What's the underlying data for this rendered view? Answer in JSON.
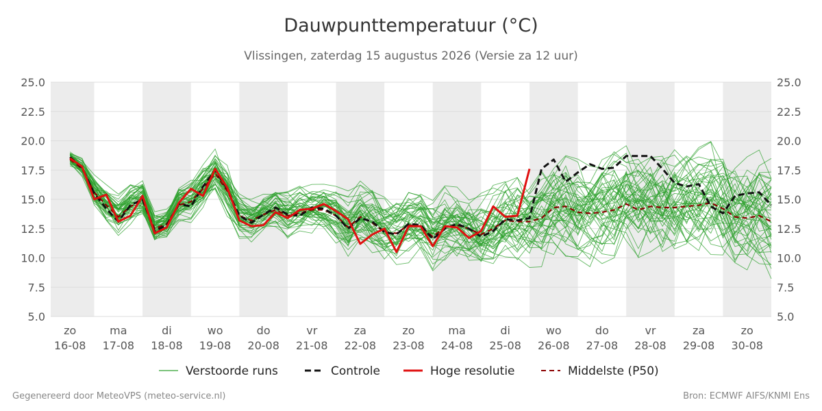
{
  "header": {
    "title": "Dauwpunttemperatuur (°C)",
    "subtitle": "Vlissingen, zaterdag 15 augustus 2026 (Versie za 12 uur)"
  },
  "footer": {
    "left": "Gegenereerd door MeteoVPS (meteo-service.nl)",
    "right": "Bron: ECMWF AIFS/KNMI Ens"
  },
  "colors": {
    "ensemble": "#2ca02c",
    "control": "#111111",
    "high_res": "#e01010",
    "median": "#8b0000",
    "weekend_band": "#ececec",
    "grid": "#dddddd"
  },
  "chart_data": {
    "type": "line",
    "title": "Dauwpunttemperatuur (°C)",
    "ylim": [
      5,
      25
    ],
    "yticks": [
      "5.0",
      "7.5",
      "10.0",
      "12.5",
      "15.0",
      "17.5",
      "20.0",
      "22.5",
      "25.0"
    ],
    "x_start_day": 15.6,
    "x_end_day": 30.5,
    "x_ticks": [
      {
        "day": 16,
        "weekday": "zo",
        "date": "16-08"
      },
      {
        "day": 17,
        "weekday": "ma",
        "date": "17-08"
      },
      {
        "day": 18,
        "weekday": "di",
        "date": "18-08"
      },
      {
        "day": 19,
        "weekday": "wo",
        "date": "19-08"
      },
      {
        "day": 20,
        "weekday": "do",
        "date": "20-08"
      },
      {
        "day": 21,
        "weekday": "vr",
        "date": "21-08"
      },
      {
        "day": 22,
        "weekday": "za",
        "date": "22-08"
      },
      {
        "day": 23,
        "weekday": "zo",
        "date": "23-08"
      },
      {
        "day": 24,
        "weekday": "ma",
        "date": "24-08"
      },
      {
        "day": 25,
        "weekday": "di",
        "date": "25-08"
      },
      {
        "day": 26,
        "weekday": "wo",
        "date": "26-08"
      },
      {
        "day": 27,
        "weekday": "do",
        "date": "27-08"
      },
      {
        "day": 28,
        "weekday": "vr",
        "date": "28-08"
      },
      {
        "day": 29,
        "weekday": "za",
        "date": "29-08"
      },
      {
        "day": 30,
        "weekday": "zo",
        "date": "30-08"
      }
    ],
    "shaded_bands": [
      [
        15.5,
        16.5
      ],
      [
        17.5,
        18.5
      ],
      [
        19.5,
        20.5
      ],
      [
        21.5,
        22.5
      ],
      [
        23.5,
        24.5
      ],
      [
        25.5,
        26.5
      ],
      [
        27.5,
        28.5
      ],
      [
        29.5,
        30.5
      ]
    ],
    "legend": [
      "Verstoorde runs",
      "Controle",
      "Hoge resolutie",
      "Middelste (P50)"
    ],
    "series": [
      {
        "name": "Controle",
        "x": [
          16.0,
          16.25,
          16.5,
          16.75,
          17.0,
          17.25,
          17.5,
          17.75,
          18.0,
          18.25,
          18.5,
          18.75,
          19.0,
          19.25,
          19.5,
          19.75,
          20.0,
          20.25,
          20.5,
          20.75,
          21.0,
          21.25,
          21.5,
          21.75,
          22.0,
          22.25,
          22.5,
          22.75,
          23.0,
          23.25,
          23.5,
          23.75,
          24.0,
          24.25,
          24.5,
          24.75,
          25.0,
          25.25,
          25.5,
          25.75,
          26.0,
          26.25,
          26.5,
          26.75,
          27.0,
          27.25,
          27.5,
          27.75,
          28.0,
          28.25,
          28.5,
          28.75,
          29.0,
          29.25,
          29.5,
          29.75,
          30.0,
          30.25,
          30.5
        ],
        "y": [
          18.6,
          17.7,
          15.5,
          14.2,
          13.1,
          14.5,
          15.0,
          12.3,
          12.8,
          14.6,
          14.4,
          16.1,
          17.5,
          15.9,
          13.6,
          13.0,
          13.7,
          14.3,
          13.7,
          13.6,
          14.3,
          14.2,
          13.6,
          12.5,
          13.4,
          13.1,
          12.2,
          12.0,
          12.9,
          12.8,
          11.6,
          12.5,
          12.9,
          12.5,
          11.8,
          12.3,
          13.3,
          13.2,
          13.4,
          17.6,
          18.4,
          16.5,
          17.3,
          18.0,
          17.6,
          17.7,
          18.7,
          18.7,
          18.7,
          17.6,
          16.4,
          16.1,
          16.3,
          14.4,
          13.8,
          15.3,
          15.5,
          15.6,
          14.5
        ]
      },
      {
        "name": "Hoge resolutie",
        "x": [
          16.0,
          16.25,
          16.5,
          16.75,
          17.0,
          17.25,
          17.5,
          17.75,
          18.0,
          18.25,
          18.5,
          18.75,
          19.0,
          19.25,
          19.5,
          19.75,
          20.0,
          20.25,
          20.5,
          20.75,
          21.0,
          21.25,
          21.5,
          21.75,
          22.0,
          22.25,
          22.5,
          22.75,
          23.0,
          23.25,
          23.5,
          23.75,
          24.0,
          24.25,
          24.5,
          24.75,
          25.0,
          25.25,
          25.5
        ],
        "y": [
          18.5,
          17.8,
          15.0,
          15.4,
          13.1,
          13.6,
          15.3,
          12.1,
          12.6,
          14.7,
          15.9,
          15.3,
          17.6,
          16.0,
          13.2,
          12.7,
          12.8,
          13.9,
          13.4,
          14.1,
          14.2,
          14.6,
          14.0,
          13.3,
          11.2,
          12.0,
          12.5,
          10.5,
          12.7,
          12.7,
          11.0,
          12.7,
          12.6,
          11.7,
          12.3,
          14.4,
          13.5,
          13.6,
          17.6
        ]
      },
      {
        "name": "Middelste (P50)",
        "x": [
          16.0,
          16.25,
          16.5,
          16.75,
          17.0,
          17.25,
          17.5,
          17.75,
          18.0,
          18.25,
          18.5,
          18.75,
          19.0,
          19.25,
          19.5,
          19.75,
          20.0,
          20.25,
          20.5,
          20.75,
          21.0,
          21.25,
          21.5,
          21.75,
          22.0,
          22.25,
          22.5,
          22.75,
          23.0,
          23.25,
          23.5,
          23.75,
          24.0,
          24.25,
          24.5,
          24.75,
          25.0,
          25.25,
          25.5,
          25.75,
          26.0,
          26.25,
          26.5,
          26.75,
          27.0,
          27.25,
          27.5,
          27.75,
          28.0,
          28.25,
          28.5,
          28.75,
          29.0,
          29.25,
          29.5,
          29.75,
          30.0,
          30.25,
          30.5
        ],
        "y": [
          18.4,
          17.6,
          15.6,
          14.5,
          13.5,
          14.4,
          14.9,
          12.5,
          12.9,
          14.5,
          14.8,
          15.9,
          17.2,
          15.7,
          13.6,
          13.2,
          13.7,
          14.1,
          13.6,
          13.8,
          14.1,
          14.1,
          13.6,
          12.6,
          13.5,
          13.0,
          12.2,
          12.1,
          12.8,
          12.7,
          11.8,
          12.6,
          12.8,
          12.5,
          12.0,
          12.5,
          13.2,
          13.1,
          13.1,
          13.4,
          14.3,
          14.4,
          13.9,
          13.8,
          13.9,
          14.1,
          14.6,
          14.1,
          14.4,
          14.3,
          14.3,
          14.4,
          14.5,
          14.7,
          14.2,
          13.5,
          13.4,
          13.6,
          13.1
        ]
      }
    ],
    "ensemble": {
      "name": "Verstoorde runs",
      "members": 50,
      "x": [
        16.0,
        16.25,
        16.5,
        16.75,
        17.0,
        17.25,
        17.5,
        17.75,
        18.0,
        18.25,
        18.5,
        18.75,
        19.0,
        19.25,
        19.5,
        19.75,
        20.0,
        20.25,
        20.5,
        20.75,
        21.0,
        21.25,
        21.5,
        21.75,
        22.0,
        22.25,
        22.5,
        22.75,
        23.0,
        23.25,
        23.5,
        23.75,
        24.0,
        24.25,
        24.5,
        24.75,
        25.0,
        25.25,
        25.5,
        25.75,
        26.0,
        26.25,
        26.5,
        26.75,
        27.0,
        27.25,
        27.5,
        27.75,
        28.0,
        28.25,
        28.5,
        28.75,
        29.0,
        29.25,
        29.5,
        29.75,
        30.0,
        30.25,
        30.5
      ],
      "spread": [
        0.5,
        0.6,
        1.0,
        1.2,
        1.3,
        1.2,
        1.1,
        1.0,
        1.0,
        1.1,
        1.2,
        1.3,
        1.3,
        1.4,
        1.4,
        1.3,
        1.3,
        1.3,
        1.4,
        1.4,
        1.4,
        1.5,
        1.6,
        1.7,
        1.8,
        1.9,
        2.0,
        2.1,
        2.1,
        2.2,
        2.2,
        2.3,
        2.3,
        2.3,
        2.4,
        2.4,
        2.5,
        2.5,
        2.6,
        2.7,
        2.8,
        2.9,
        3.0,
        3.0,
        3.1,
        3.2,
        3.3,
        3.3,
        3.3,
        3.3,
        3.3,
        3.3,
        3.3,
        3.3,
        3.3,
        3.3,
        3.3,
        3.3,
        3.3
      ]
    }
  }
}
